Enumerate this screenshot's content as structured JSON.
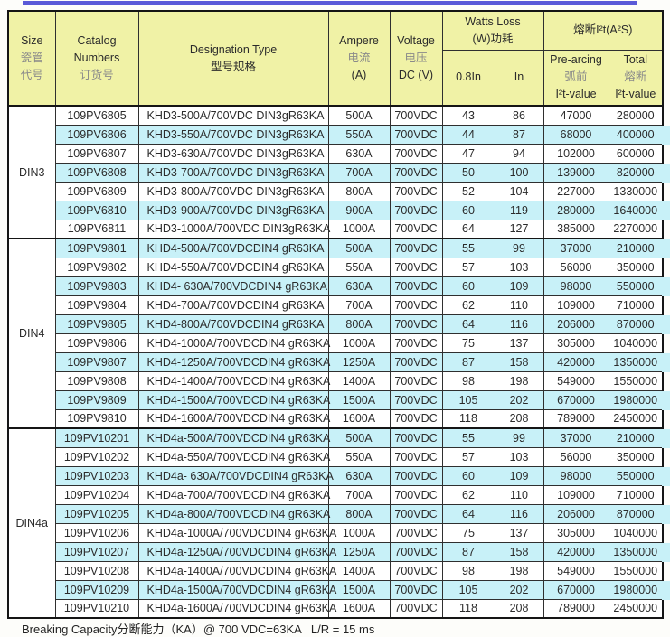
{
  "colors": {
    "top_rule": "#5a5ad8",
    "header_bg": "#f0f2a6",
    "row_stripe": "#c8f1f8",
    "border": "#2f2f2f"
  },
  "header": {
    "size_lines": [
      "Size",
      "瓷管",
      "代号"
    ],
    "catalog_lines": [
      "Catalog",
      "Numbers",
      "订货号"
    ],
    "designation_lines": [
      "Designation Type",
      "型号规格"
    ],
    "ampere_lines": [
      "Ampere",
      "电流",
      "(A)"
    ],
    "voltage_lines": [
      "Voltage",
      "电压",
      "DC (V)"
    ],
    "watts_loss_lines": [
      "Watts Loss",
      "(W)功耗"
    ],
    "watts_sub": [
      "0.8In",
      "In"
    ],
    "i2t_title": "熔断I²t(A²S)",
    "prearcing_lines": [
      "Pre-arcing",
      "弧前",
      "I²t-value"
    ],
    "total_lines": [
      "Total",
      "熔断",
      "I²t-value"
    ]
  },
  "groups": [
    {
      "size": "DIN3",
      "rows": [
        [
          "109PV6805",
          "KHD3-500A/700VDC DIN3gR63KA",
          "500A",
          "700VDC",
          "43",
          "86",
          "47000",
          "280000"
        ],
        [
          "109PV6806",
          "KHD3-550A/700VDC DIN3gR63KA",
          "550A",
          "700VDC",
          "44",
          "87",
          "68000",
          "400000"
        ],
        [
          "109PV6807",
          "KHD3-630A/700VDC DIN3gR63KA",
          "630A",
          "700VDC",
          "47",
          "94",
          "102000",
          "600000"
        ],
        [
          "109PV6808",
          "KHD3-700A/700VDC DIN3gR63KA",
          "700A",
          "700VDC",
          "50",
          "100",
          "139000",
          "820000"
        ],
        [
          "109PV6809",
          "KHD3-800A/700VDC DIN3gR63KA",
          "800A",
          "700VDC",
          "52",
          "104",
          "227000",
          "1330000"
        ],
        [
          "109PV6810",
          "KHD3-900A/700VDC DIN3gR63KA",
          "900A",
          "700VDC",
          "60",
          "119",
          "280000",
          "1640000"
        ],
        [
          "109PV6811",
          "KHD3-1000A/700VDC DIN3gR63KA",
          "1000A",
          "700VDC",
          "64",
          "127",
          "385000",
          "2270000"
        ]
      ]
    },
    {
      "size": "DIN4",
      "rows": [
        [
          "109PV9801",
          "KHD4-500A/700VDCDIN4 gR63KA",
          "500A",
          "700VDC",
          "55",
          "99",
          "37000",
          "210000"
        ],
        [
          "109PV9802",
          "KHD4-550A/700VDCDIN4 gR63KA",
          "550A",
          "700VDC",
          "57",
          "103",
          "56000",
          "350000"
        ],
        [
          "109PV9803",
          "KHD4- 630A/700VDCDIN4 gR63KA",
          "630A",
          "700VDC",
          "60",
          "109",
          "98000",
          "550000"
        ],
        [
          "109PV9804",
          "KHD4-700A/700VDCDIN4 gR63KA",
          "700A",
          "700VDC",
          "62",
          "110",
          "109000",
          "710000"
        ],
        [
          "109PV9805",
          "KHD4-800A/700VDCDIN4 gR63KA",
          "800A",
          "700VDC",
          "64",
          "116",
          "206000",
          "870000"
        ],
        [
          "109PV9806",
          "KHD4-1000A/700VDCDIN4 gR63KA",
          "1000A",
          "700VDC",
          "75",
          "137",
          "305000",
          "1040000"
        ],
        [
          "109PV9807",
          "KHD4-1250A/700VDCDIN4 gR63KA",
          "1250A",
          "700VDC",
          "87",
          "158",
          "420000",
          "1350000"
        ],
        [
          "109PV9808",
          "KHD4-1400A/700VDCDIN4 gR63KA",
          "1400A",
          "700VDC",
          "98",
          "198",
          "549000",
          "1550000"
        ],
        [
          "109PV9809",
          "KHD4-1500A/700VDCDIN4 gR63KA",
          "1500A",
          "700VDC",
          "105",
          "202",
          "670000",
          "1980000"
        ],
        [
          "109PV9810",
          "KHD4-1600A/700VDCDIN4 gR63KA",
          "1600A",
          "700VDC",
          "118",
          "208",
          "789000",
          "2450000"
        ]
      ]
    },
    {
      "size": "DIN4a",
      "rows": [
        [
          "109PV10201",
          "KHD4a-500A/700VDCDIN4 gR63KA",
          "500A",
          "700VDC",
          "55",
          "99",
          "37000",
          "210000"
        ],
        [
          "109PV10202",
          "KHD4a-550A/700VDCDIN4 gR63KA",
          "550A",
          "700VDC",
          "57",
          "103",
          "56000",
          "350000"
        ],
        [
          "109PV10203",
          "KHD4a- 630A/700VDCDIN4 gR63KA",
          "630A",
          "700VDC",
          "60",
          "109",
          "98000",
          "550000"
        ],
        [
          "109PV10204",
          "KHD4a-700A/700VDCDIN4 gR63KA",
          "700A",
          "700VDC",
          "62",
          "110",
          "109000",
          "710000"
        ],
        [
          "109PV10205",
          "KHD4a-800A/700VDCDIN4 gR63KA",
          "800A",
          "700VDC",
          "64",
          "116",
          "206000",
          "870000"
        ],
        [
          "109PV10206",
          "KHD4a-1000A/700VDCDIN4 gR63KA",
          "1000A",
          "700VDC",
          "75",
          "137",
          "305000",
          "1040000"
        ],
        [
          "109PV10207",
          "KHD4a-1250A/700VDCDIN4 gR63KA",
          "1250A",
          "700VDC",
          "87",
          "158",
          "420000",
          "1350000"
        ],
        [
          "109PV10208",
          "KHD4a-1400A/700VDCDIN4 gR63KA",
          "1400A",
          "700VDC",
          "98",
          "198",
          "549000",
          "1550000"
        ],
        [
          "109PV10209",
          "KHD4a-1500A/700VDCDIN4 gR63KA",
          "1500A",
          "700VDC",
          "105",
          "202",
          "670000",
          "1980000"
        ],
        [
          "109PV10210",
          "KHD4a-1600A/700VDCDIN4 gR63KA",
          "1600A",
          "700VDC",
          "118",
          "208",
          "789000",
          "2450000"
        ]
      ]
    }
  ],
  "cell_names": [
    "catalog-number-cell",
    "designation-cell",
    "ampere-cell",
    "voltage-cell",
    "watts-loss-08in-cell",
    "watts-loss-in-cell",
    "prearcing-i2t-cell",
    "total-i2t-cell"
  ],
  "footer": {
    "text": "Breaking Capacity分断能力（KA）@ 700 VDC=63KA   L/R = 15 ms"
  }
}
